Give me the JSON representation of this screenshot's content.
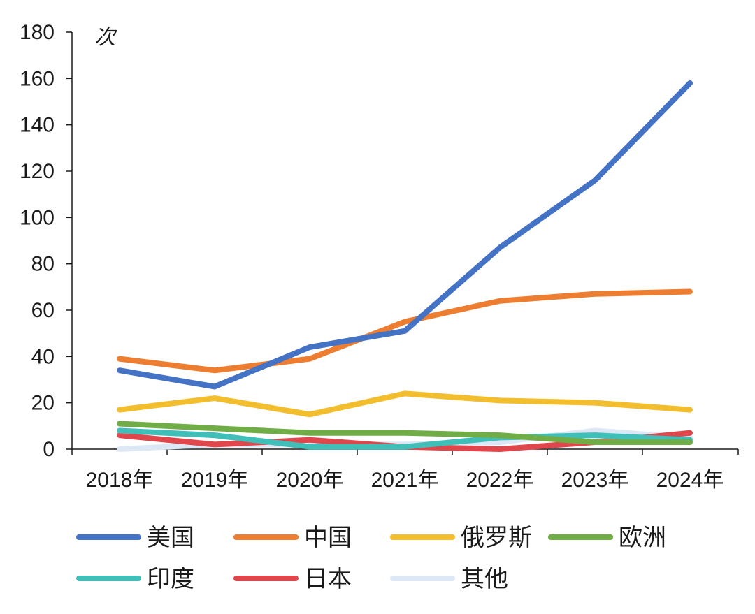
{
  "chart_data": {
    "type": "line",
    "title": "",
    "xlabel": "",
    "ylabel": "次",
    "ylim": [
      0,
      180
    ],
    "yticks": [
      0,
      20,
      40,
      60,
      80,
      100,
      120,
      140,
      160,
      180
    ],
    "categories": [
      "2018年",
      "2019年",
      "2020年",
      "2021年",
      "2022年",
      "2023年",
      "2024年"
    ],
    "grid": false,
    "legend_position": "bottom",
    "series": [
      {
        "name": "美国",
        "color": "#4472C4",
        "values": [
          34,
          27,
          44,
          51,
          87,
          116,
          158
        ]
      },
      {
        "name": "中国",
        "color": "#ED7D31",
        "values": [
          39,
          34,
          39,
          55,
          64,
          67,
          68
        ]
      },
      {
        "name": "俄罗斯",
        "color": "#F2BE2E",
        "values": [
          17,
          22,
          15,
          24,
          21,
          20,
          17
        ]
      },
      {
        "name": "欧洲",
        "color": "#70AD47",
        "values": [
          11,
          9,
          7,
          7,
          6,
          3,
          3
        ]
      },
      {
        "name": "印度",
        "color": "#3FBFB8",
        "values": [
          8,
          6,
          1,
          1,
          5,
          6,
          4
        ]
      },
      {
        "name": "日本",
        "color": "#E0474C",
        "values": [
          6,
          2,
          4,
          1,
          0,
          3,
          7
        ]
      },
      {
        "name": "其他",
        "color": "#DCE8F5",
        "values": [
          0,
          2,
          2,
          2,
          3,
          8,
          5
        ]
      }
    ]
  }
}
